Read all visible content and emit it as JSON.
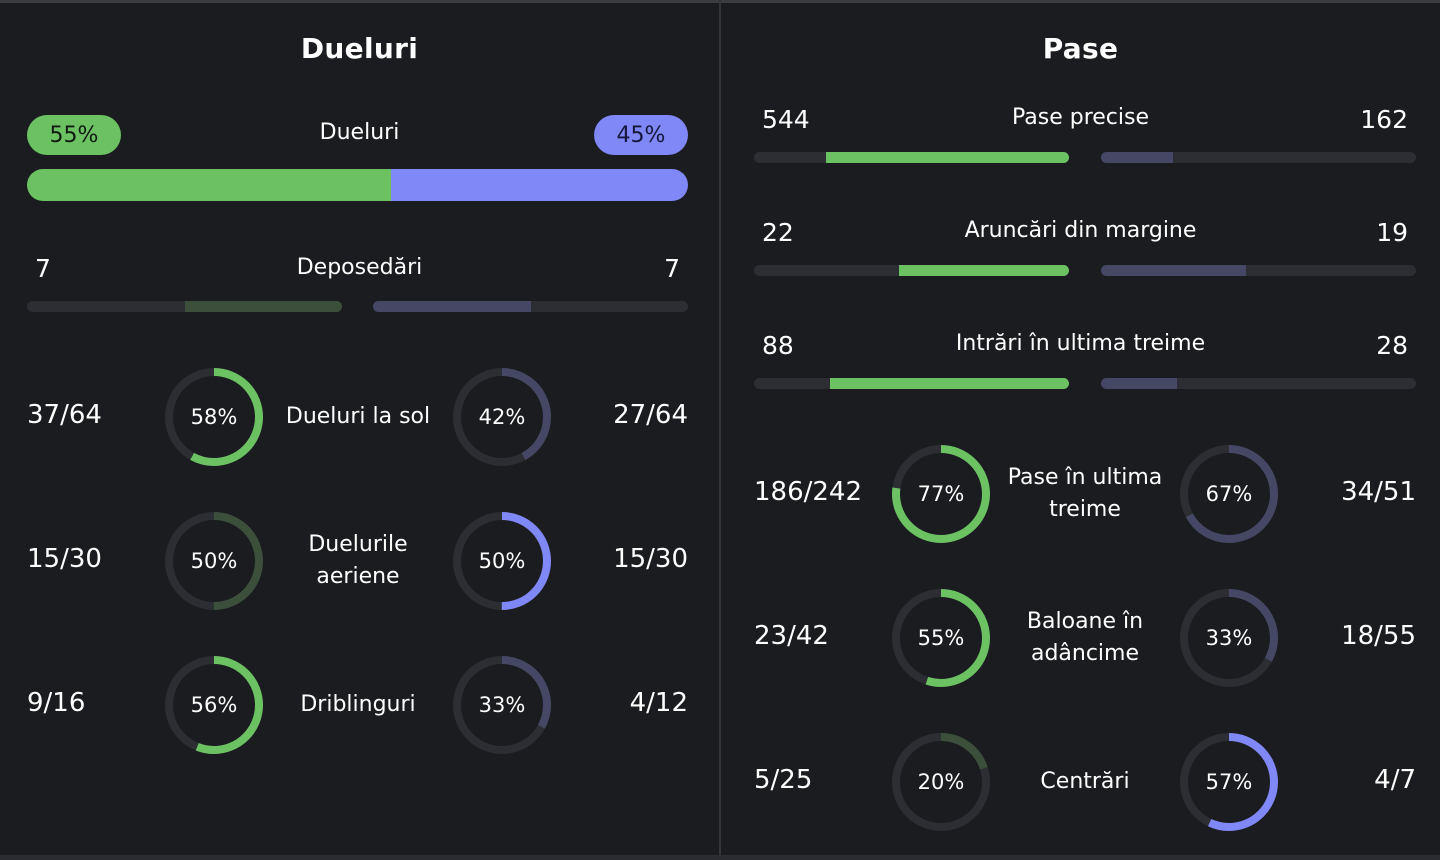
{
  "colors": {
    "home": "#6cc263",
    "home_dim": "#3b4f3a",
    "away": "#8087f6",
    "away_dim": "#454764",
    "track": "#2c2e33"
  },
  "left_panel": {
    "title": "Dueluri",
    "duels": {
      "label": "Dueluri",
      "home_pct": "55%",
      "away_pct": "45%",
      "home_share": 0.55
    },
    "stats": [
      {
        "label": "Deposedări",
        "home": "7",
        "away": "7",
        "home_fill": 0.5,
        "away_fill": 0.5,
        "home_dim": true,
        "away_dim": true
      }
    ],
    "rings": [
      {
        "label": "Dueluri la sol",
        "home_value": "37/64",
        "home_pct": "58%",
        "home_ratio": 0.58,
        "home_dim": false,
        "away_value": "27/64",
        "away_pct": "42%",
        "away_ratio": 0.42,
        "away_dim": true
      },
      {
        "label": "Duelurile aeriene",
        "home_value": "15/30",
        "home_pct": "50%",
        "home_ratio": 0.5,
        "home_dim": true,
        "away_value": "15/30",
        "away_pct": "50%",
        "away_ratio": 0.5,
        "away_dim": false
      },
      {
        "label": "Driblinguri",
        "home_value": "9/16",
        "home_pct": "56%",
        "home_ratio": 0.56,
        "home_dim": false,
        "away_value": "4/12",
        "away_pct": "33%",
        "away_ratio": 0.33,
        "away_dim": true
      }
    ]
  },
  "right_panel": {
    "title": "Pase",
    "stats": [
      {
        "label": "Pase precise",
        "home": "544",
        "away": "162",
        "home_fill": 0.77,
        "away_fill": 0.23,
        "home_dim": false,
        "away_dim": true
      },
      {
        "label": "Aruncări din margine",
        "home": "22",
        "away": "19",
        "home_fill": 0.54,
        "away_fill": 0.46,
        "home_dim": false,
        "away_dim": true
      },
      {
        "label": "Intrări în ultima treime",
        "home": "88",
        "away": "28",
        "home_fill": 0.76,
        "away_fill": 0.24,
        "home_dim": false,
        "away_dim": true
      }
    ],
    "rings": [
      {
        "label": "Pase în ultima treime",
        "home_value": "186/242",
        "home_pct": "77%",
        "home_ratio": 0.77,
        "home_dim": false,
        "away_value": "34/51",
        "away_pct": "67%",
        "away_ratio": 0.67,
        "away_dim": true
      },
      {
        "label": "Baloane în adâncime",
        "home_value": "23/42",
        "home_pct": "55%",
        "home_ratio": 0.55,
        "home_dim": false,
        "away_value": "18/55",
        "away_pct": "33%",
        "away_ratio": 0.33,
        "away_dim": true
      },
      {
        "label": "Centrări",
        "home_value": "5/25",
        "home_pct": "20%",
        "home_ratio": 0.2,
        "home_dim": true,
        "away_value": "4/7",
        "away_pct": "57%",
        "away_ratio": 0.57,
        "away_dim": false
      }
    ]
  }
}
